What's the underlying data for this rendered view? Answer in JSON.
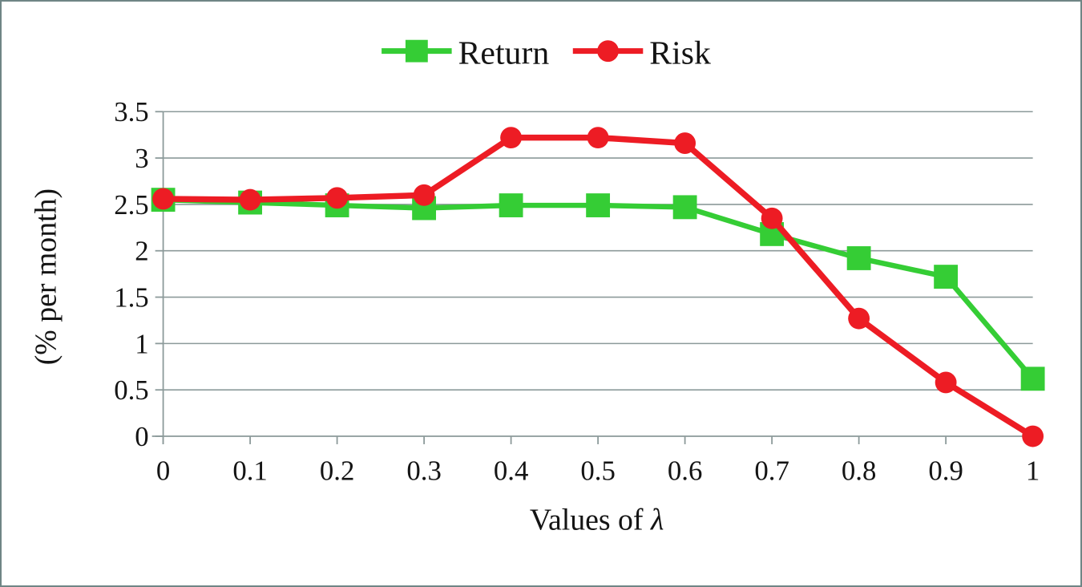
{
  "chart_data": {
    "type": "line",
    "title": "",
    "x": [
      0,
      0.1,
      0.2,
      0.3,
      0.4,
      0.5,
      0.6,
      0.7,
      0.8,
      0.9,
      1
    ],
    "x_tick_labels": [
      "0",
      "0.1",
      "0.2",
      "0.3",
      "0.4",
      "0.5",
      "0.6",
      "0.7",
      "0.8",
      "0.9",
      "1"
    ],
    "y_tick_labels": [
      "0",
      "0.5",
      "1",
      "1.5",
      "2",
      "2.5",
      "3",
      "3.5"
    ],
    "ylim": [
      0,
      3.5
    ],
    "xlabel_prefix": "Values of ",
    "xlabel_symbol": "λ",
    "ylabel": "(% per month)",
    "grid": "horizontal",
    "legend_position": "top-center",
    "series": [
      {
        "name": "Return",
        "marker": "square",
        "color": "#35cd35",
        "values": [
          2.55,
          2.52,
          2.49,
          2.46,
          2.49,
          2.49,
          2.47,
          2.18,
          1.92,
          1.72,
          0.62
        ]
      },
      {
        "name": "Risk",
        "marker": "circle",
        "color": "#ed1c24",
        "values": [
          2.56,
          2.55,
          2.57,
          2.6,
          3.22,
          3.22,
          3.16,
          2.35,
          1.27,
          0.58,
          0.0
        ]
      }
    ]
  },
  "style": {
    "grid_color": "#8c9a9a",
    "axis_color": "#8c9a9a",
    "text_color": "#141414",
    "border_color": "#6f8585",
    "background": "#ffffff"
  }
}
